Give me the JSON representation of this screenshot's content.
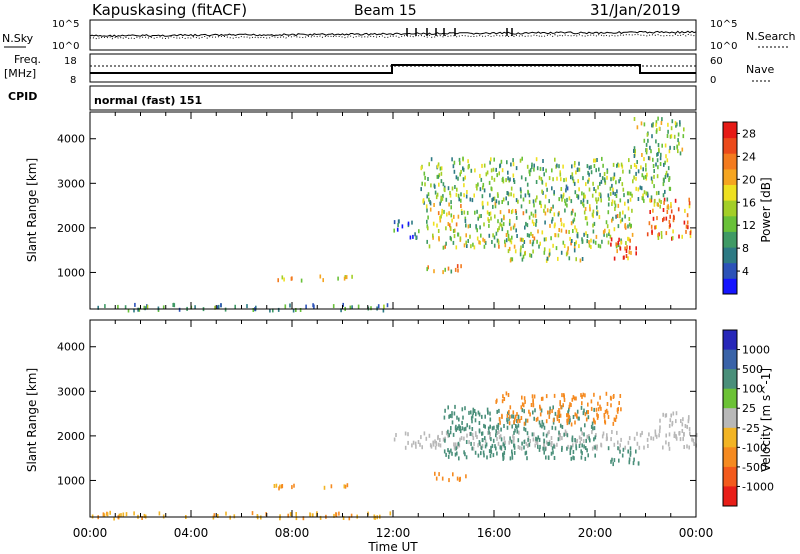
{
  "header": {
    "station": "Kapuskasing (fitACF)",
    "beam": "Beam 15",
    "date": "31/Jan/2019"
  },
  "noise_panel": {
    "left_label": "N.Sky",
    "right_label": "N.Search",
    "left_ticks": [
      "10^5",
      "10^0"
    ],
    "right_ticks": [
      "10^5",
      "10^0"
    ]
  },
  "freq_panel": {
    "left_label_1": "Freq.",
    "left_label_2": "[MHz]",
    "right_label": "Nave",
    "left_ticks": [
      "18",
      "8"
    ],
    "right_ticks": [
      "60",
      "0"
    ]
  },
  "cpid_panel": {
    "label": "CPID",
    "text": "normal (fast) 151"
  },
  "chart_data": [
    {
      "type": "heatmap",
      "title": "",
      "xlabel": "Time UT",
      "ylabel": "Slant Range [km]",
      "x_ticks": [
        "00:00",
        "04:00",
        "08:00",
        "12:00",
        "16:00",
        "20:00",
        "00:00"
      ],
      "xlim_hours": [
        0,
        24
      ],
      "y_ticks": [
        "1000",
        "2000",
        "3000",
        "4000"
      ],
      "ylim": [
        180,
        4600
      ],
      "colorbar": {
        "label": "Power [dB]",
        "ticks": [
          "4",
          "8",
          "12",
          "16",
          "20",
          "24",
          "28"
        ],
        "range": [
          0,
          30
        ],
        "colors": [
          "#1515ff",
          "#2c52b8",
          "#2d7a84",
          "#3f9a65",
          "#69c139",
          "#a3cf28",
          "#eee021",
          "#f5a521",
          "#f37b1f",
          "#eb4a1b",
          "#e61a16"
        ]
      },
      "regions": [
        {
          "t": [
            0,
            12
          ],
          "r": [
            190,
            320
          ],
          "value": 9
        },
        {
          "t": [
            7.2,
            10.5
          ],
          "r": [
            860,
            960
          ],
          "value": 16
        },
        {
          "t": [
            12,
            13
          ],
          "r": [
            1800,
            2200
          ],
          "value": 7
        },
        {
          "t": [
            13.2,
            15
          ],
          "r": [
            1050,
            1200
          ],
          "value": 18
        },
        {
          "t": [
            13.3,
            21.5
          ],
          "r": [
            1600,
            2600
          ],
          "value": 15
        },
        {
          "t": [
            16.5,
            19.5
          ],
          "r": [
            1300,
            1600
          ],
          "value": 14
        },
        {
          "t": [
            20.5,
            21.7
          ],
          "r": [
            1350,
            1800
          ],
          "value": 25
        },
        {
          "t": [
            22,
            23.8
          ],
          "r": [
            1800,
            2700
          ],
          "value": 22
        },
        {
          "t": [
            13,
            23
          ],
          "r": [
            2600,
            3600
          ],
          "value": 12
        },
        {
          "t": [
            21.5,
            23.5
          ],
          "r": [
            3600,
            4500
          ],
          "value": 13
        }
      ]
    },
    {
      "type": "heatmap",
      "title": "",
      "xlabel": "Time UT",
      "ylabel": "Slant Range [km]",
      "x_ticks": [
        "00:00",
        "04:00",
        "08:00",
        "12:00",
        "16:00",
        "20:00",
        "00:00"
      ],
      "xlim_hours": [
        0,
        24
      ],
      "y_ticks": [
        "1000",
        "2000",
        "3000",
        "4000"
      ],
      "ylim": [
        180,
        4600
      ],
      "colorbar": {
        "label": "Velocity [m s^-1]",
        "ticks": [
          "1000",
          "500",
          "100",
          "25",
          "-25",
          "-100",
          "-500",
          "-1000"
        ],
        "colors": [
          "#2727b8",
          "#3a63a8",
          "#4a8f7a",
          "#6cc236",
          "#b8b8b8",
          "#f2b424",
          "#f58a20",
          "#f35a1c",
          "#e81e18"
        ]
      },
      "regions": [
        {
          "t": [
            0,
            12
          ],
          "r": [
            190,
            320
          ],
          "value": -90
        },
        {
          "t": [
            7.2,
            10.5
          ],
          "r": [
            860,
            960
          ],
          "value": -120
        },
        {
          "t": [
            12,
            24
          ],
          "r": [
            1750,
            2150
          ],
          "value": 0
        },
        {
          "t": [
            13.2,
            15
          ],
          "r": [
            1050,
            1200
          ],
          "value": -250
        },
        {
          "t": [
            14,
            20
          ],
          "r": [
            1500,
            2700
          ],
          "value": 150
        },
        {
          "t": [
            16,
            21
          ],
          "r": [
            2300,
            3000
          ],
          "value": -350
        },
        {
          "t": [
            20.5,
            21.8
          ],
          "r": [
            1400,
            1800
          ],
          "value": 200
        },
        {
          "t": [
            22.5,
            23.8
          ],
          "r": [
            2000,
            2600
          ],
          "value": 0
        }
      ]
    }
  ]
}
